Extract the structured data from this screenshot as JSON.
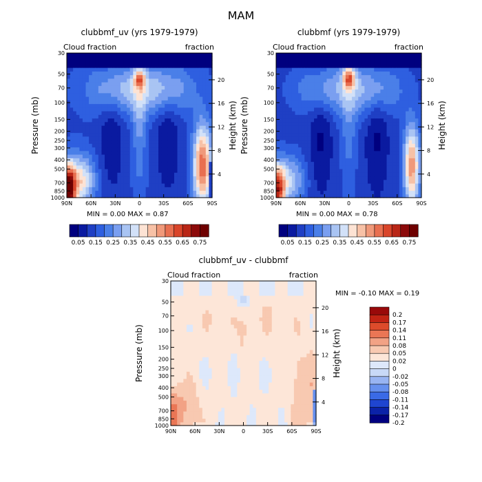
{
  "page_title": "MAM",
  "colors": {
    "blue_scale": [
      "#00007f",
      "#0a1aa0",
      "#1f3fc4",
      "#2e5fe0",
      "#4a7fe8",
      "#7a9ff0",
      "#a9c4f3",
      "#d2e1f8"
    ],
    "red_scale": [
      "#fde3d4",
      "#f7c1a6",
      "#f0997a",
      "#e86f50",
      "#d9452a",
      "#b92616",
      "#8c0a0a",
      "#6e0000"
    ],
    "diff_neg": [
      "#00007f",
      "#0b22a8",
      "#1f45d0",
      "#3a6ae6",
      "#6690ee",
      "#98b4f2",
      "#c8d9f7",
      "#dde8fb"
    ],
    "diff_pos": [
      "#fde6d8",
      "#f8c9b1",
      "#f2a285",
      "#ea7655",
      "#dd4b2b",
      "#c12314",
      "#99090a"
    ]
  },
  "chart_data": [
    {
      "type": "heatmap",
      "title": "clubbmf_uv (yrs 1979-1979)",
      "left_label": "Cloud fraction",
      "right_label": "fraction",
      "ylabel": "Pressure (mb)",
      "y2label": "Height (km)",
      "x_ticks": [
        "90N",
        "60N",
        "30N",
        "0",
        "30S",
        "60S",
        "90S"
      ],
      "y_ticks": [
        "30",
        "50",
        "70",
        "100",
        "150",
        "200",
        "250",
        "300",
        "400",
        "500",
        "700",
        "850",
        "1000"
      ],
      "y2_ticks": [
        "20",
        "16",
        "12",
        "8",
        "4"
      ],
      "min_max_text": "MIN =    0.00   MAX =    0.87",
      "colorbar_labels": [
        "0.05",
        "0.15",
        "0.25",
        "0.35",
        "0.45",
        "0.55",
        "0.65",
        "0.75"
      ],
      "levels": [
        0.05,
        0.1,
        0.15,
        0.2,
        0.25,
        0.3,
        0.35,
        0.4,
        0.45,
        0.5,
        0.55,
        0.6,
        0.65,
        0.7,
        0.75
      ]
    },
    {
      "type": "heatmap",
      "title": "clubbmf (yrs 1979-1979)",
      "left_label": "Cloud fraction",
      "right_label": "fraction",
      "ylabel": "Pressure (mb)",
      "y2label": "Height (km)",
      "x_ticks": [
        "90N",
        "60N",
        "30N",
        "0",
        "30S",
        "60S",
        "90S"
      ],
      "y_ticks": [
        "30",
        "50",
        "70",
        "100",
        "150",
        "200",
        "250",
        "300",
        "400",
        "500",
        "700",
        "850",
        "1000"
      ],
      "y2_ticks": [
        "20",
        "16",
        "12",
        "8",
        "4"
      ],
      "min_max_text": "MIN =    0.00   MAX =    0.78",
      "colorbar_labels": [
        "0.05",
        "0.15",
        "0.25",
        "0.35",
        "0.45",
        "0.55",
        "0.65",
        "0.75"
      ],
      "levels": [
        0.05,
        0.1,
        0.15,
        0.2,
        0.25,
        0.3,
        0.35,
        0.4,
        0.45,
        0.5,
        0.55,
        0.6,
        0.65,
        0.7,
        0.75
      ]
    },
    {
      "type": "heatmap",
      "title": "clubbmf_uv - clubbmf",
      "left_label": "Cloud fraction",
      "right_label": "fraction",
      "ylabel": "Pressure (mb)",
      "y2label": "Height (km)",
      "x_ticks": [
        "90N",
        "60N",
        "30N",
        "0",
        "30S",
        "60S",
        "90S"
      ],
      "y_ticks": [
        "30",
        "50",
        "70",
        "100",
        "150",
        "200",
        "250",
        "300",
        "400",
        "500",
        "700",
        "850",
        "1000"
      ],
      "y2_ticks": [
        "20",
        "16",
        "12",
        "8",
        "4"
      ],
      "min_max_text": "MIN =   -0.10   MAX =    0.19",
      "colorbar_labels": [
        "0.2",
        "0.17",
        "0.14",
        "0.11",
        "0.08",
        "0.05",
        "0.02",
        "0",
        "-0.02",
        "-0.05",
        "-0.08",
        "-0.11",
        "-0.14",
        "-0.17",
        "-0.2"
      ]
    }
  ]
}
